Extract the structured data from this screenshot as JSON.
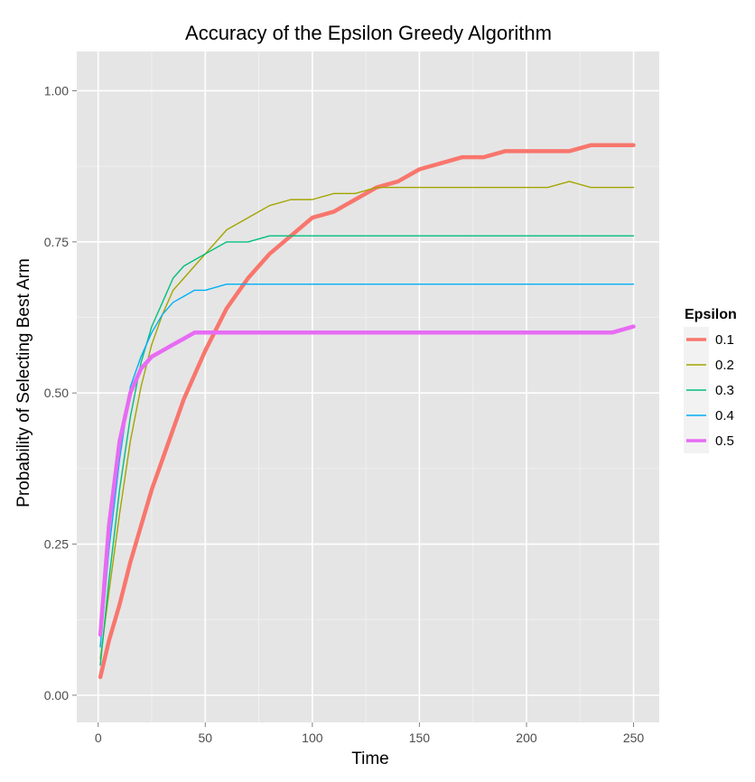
{
  "chart_data": {
    "type": "line",
    "title": "Accuracy of the Epsilon Greedy Algorithm",
    "xlabel": "Time",
    "ylabel": "Probability of Selecting Best Arm",
    "xlim": [
      -10,
      262
    ],
    "ylim": [
      -0.045,
      1.065
    ],
    "xticks": [
      0,
      50,
      100,
      150,
      200,
      250
    ],
    "xtick_labels": [
      "0",
      "50",
      "100",
      "150",
      "200",
      "250"
    ],
    "yticks": [
      0.0,
      0.25,
      0.5,
      0.75,
      1.0
    ],
    "ytick_labels": [
      "0.00",
      "0.25",
      "0.50",
      "0.75",
      "1.00"
    ],
    "grid": true,
    "legend": {
      "title": "Epsilon",
      "placement": "right"
    },
    "x": [
      1,
      5,
      10,
      15,
      20,
      25,
      30,
      35,
      40,
      45,
      50,
      60,
      70,
      80,
      90,
      100,
      110,
      120,
      130,
      140,
      150,
      160,
      170,
      180,
      190,
      200,
      210,
      220,
      230,
      240,
      250
    ],
    "series": [
      {
        "name": "0.1",
        "color": "#F8766D",
        "width": 4.5,
        "values": [
          0.03,
          0.09,
          0.15,
          0.22,
          0.28,
          0.34,
          0.39,
          0.44,
          0.49,
          0.53,
          0.57,
          0.64,
          0.69,
          0.73,
          0.76,
          0.79,
          0.8,
          0.82,
          0.84,
          0.85,
          0.87,
          0.88,
          0.89,
          0.89,
          0.9,
          0.9,
          0.9,
          0.9,
          0.91,
          0.91,
          0.91
        ]
      },
      {
        "name": "0.2",
        "color": "#A3A500",
        "width": 1.4,
        "values": [
          0.06,
          0.17,
          0.3,
          0.42,
          0.51,
          0.58,
          0.63,
          0.67,
          0.69,
          0.71,
          0.73,
          0.77,
          0.79,
          0.81,
          0.82,
          0.82,
          0.83,
          0.83,
          0.84,
          0.84,
          0.84,
          0.84,
          0.84,
          0.84,
          0.84,
          0.84,
          0.84,
          0.85,
          0.84,
          0.84,
          0.84
        ]
      },
      {
        "name": "0.3",
        "color": "#00BF7D",
        "width": 1.4,
        "values": [
          0.05,
          0.19,
          0.34,
          0.46,
          0.55,
          0.61,
          0.65,
          0.69,
          0.71,
          0.72,
          0.73,
          0.75,
          0.75,
          0.76,
          0.76,
          0.76,
          0.76,
          0.76,
          0.76,
          0.76,
          0.76,
          0.76,
          0.76,
          0.76,
          0.76,
          0.76,
          0.76,
          0.76,
          0.76,
          0.76,
          0.76
        ]
      },
      {
        "name": "0.4",
        "color": "#00B0F6",
        "width": 1.4,
        "values": [
          0.08,
          0.24,
          0.39,
          0.51,
          0.56,
          0.6,
          0.63,
          0.65,
          0.66,
          0.67,
          0.67,
          0.68,
          0.68,
          0.68,
          0.68,
          0.68,
          0.68,
          0.68,
          0.68,
          0.68,
          0.68,
          0.68,
          0.68,
          0.68,
          0.68,
          0.68,
          0.68,
          0.68,
          0.68,
          0.68,
          0.68
        ]
      },
      {
        "name": "0.5",
        "color": "#E76BF3",
        "width": 4.5,
        "values": [
          0.1,
          0.28,
          0.42,
          0.5,
          0.54,
          0.56,
          0.57,
          0.58,
          0.59,
          0.6,
          0.6,
          0.6,
          0.6,
          0.6,
          0.6,
          0.6,
          0.6,
          0.6,
          0.6,
          0.6,
          0.6,
          0.6,
          0.6,
          0.6,
          0.6,
          0.6,
          0.6,
          0.6,
          0.6,
          0.6,
          0.61
        ]
      }
    ]
  }
}
